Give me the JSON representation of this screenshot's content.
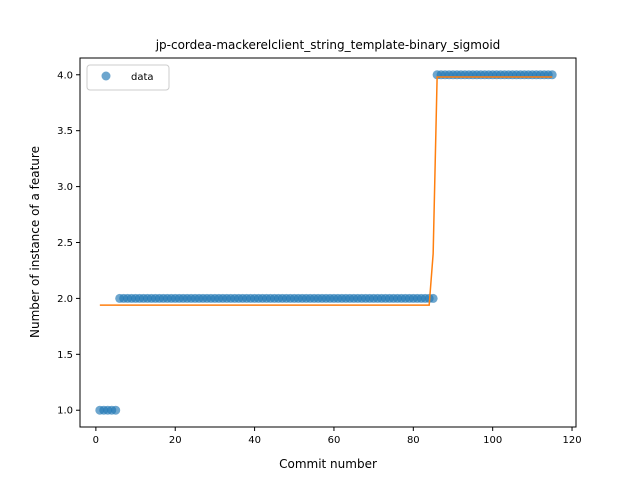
{
  "chart_data": {
    "type": "scatter",
    "title": "jp-cordea-mackerelclient_string_template-binary_sigmoid",
    "xlabel": "Commit number",
    "ylabel": "Number of instance of a feature",
    "xlim": [
      -4,
      121
    ],
    "ylim": [
      0.85,
      4.15
    ],
    "xticks": [
      0,
      20,
      40,
      60,
      80,
      100,
      120
    ],
    "yticks": [
      1.0,
      1.5,
      2.0,
      2.5,
      3.0,
      3.5,
      4.0
    ],
    "xtick_labels": [
      "0",
      "20",
      "40",
      "60",
      "80",
      "100",
      "120"
    ],
    "ytick_labels": [
      "1.0",
      "1.5",
      "2.0",
      "2.5",
      "3.0",
      "3.5",
      "4.0"
    ],
    "grid": false,
    "legend": {
      "position": "top-left",
      "entries": [
        "data"
      ]
    },
    "series": [
      {
        "name": "data",
        "kind": "points",
        "color": "#1f77b4",
        "segments": [
          {
            "x_from": 1,
            "x_to": 5,
            "y": 1
          },
          {
            "x_from": 6,
            "x_to": 85,
            "y": 2
          },
          {
            "x_from": 86,
            "x_to": 115,
            "y": 4
          }
        ]
      },
      {
        "kind": "line",
        "color": "#ff7f0e",
        "x": [
          1,
          84,
          85,
          86,
          115
        ],
        "y": [
          1.94,
          1.94,
          2.4,
          3.98,
          3.98
        ]
      }
    ]
  }
}
